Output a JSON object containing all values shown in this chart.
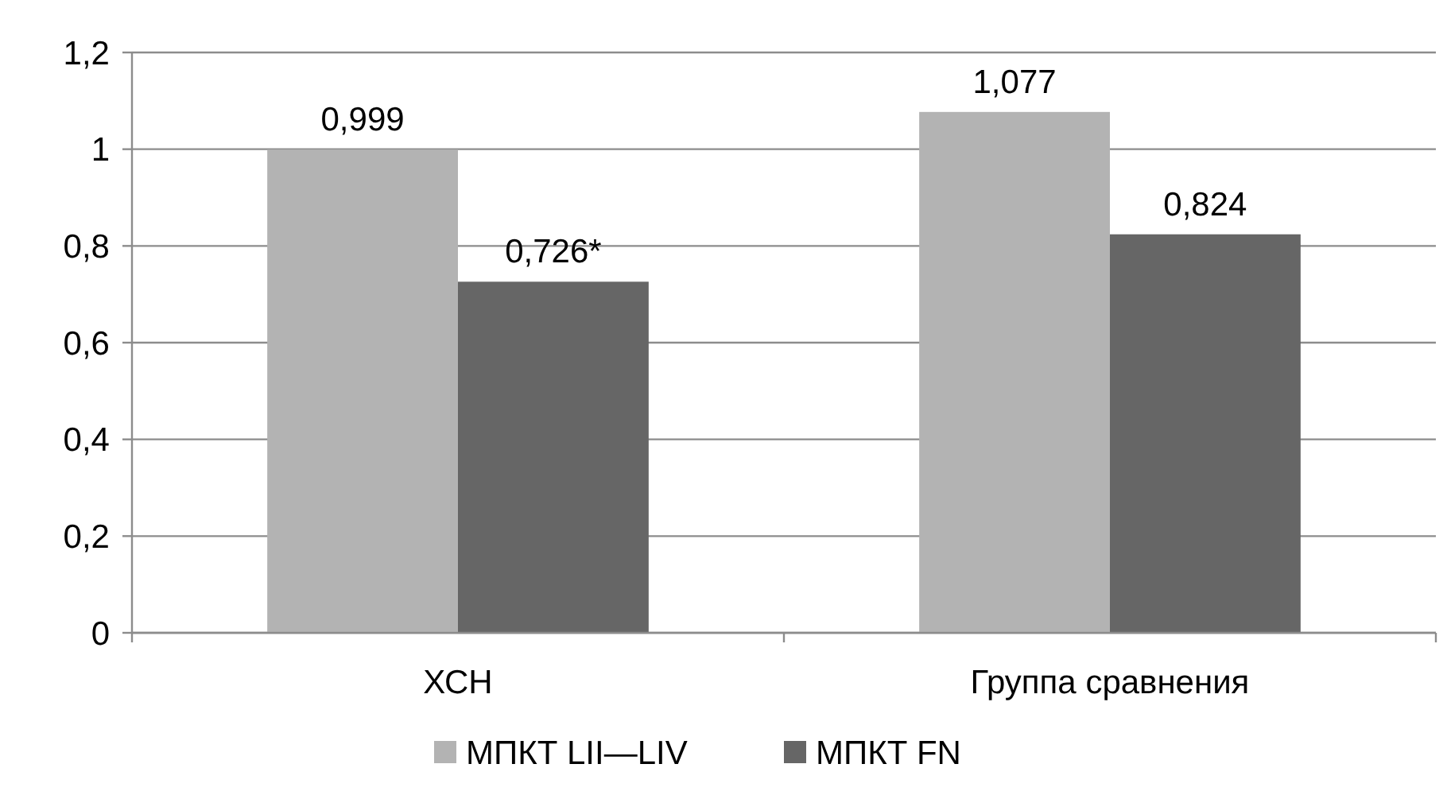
{
  "chart_data": {
    "type": "bar",
    "categories": [
      "ХСН",
      "Группа сравнения"
    ],
    "series": [
      {
        "name": "МПКТ LII—LIV",
        "color": "#b3b3b3",
        "values": [
          0.999,
          1.077
        ],
        "value_labels": [
          "0,999",
          "1,077"
        ]
      },
      {
        "name": "МПКТ FN",
        "color": "#666666",
        "values": [
          0.726,
          0.824
        ],
        "value_labels": [
          "0,726*",
          "0,824"
        ]
      }
    ],
    "ylim": [
      0,
      1.2
    ],
    "yticks": [
      0,
      {
        "value": 0.2,
        "label": "0,2"
      },
      {
        "value": 0.4,
        "label": "0,4"
      },
      {
        "value": 0.6,
        "label": "0,6"
      },
      {
        "value": 0.8,
        "label": "0,8"
      },
      1,
      {
        "value": 1.2,
        "label": "1,2"
      }
    ],
    "grid": "y",
    "legend": "bottom"
  }
}
